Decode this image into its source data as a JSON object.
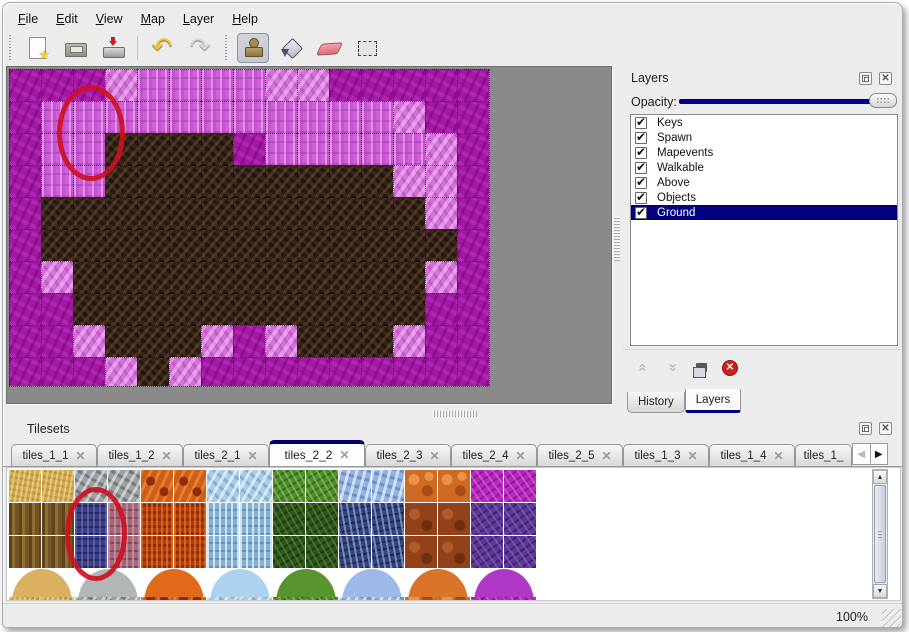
{
  "menu": {
    "items": [
      {
        "label": "File"
      },
      {
        "label": "Edit"
      },
      {
        "label": "View"
      },
      {
        "label": "Map"
      },
      {
        "label": "Layer"
      },
      {
        "label": "Help"
      }
    ]
  },
  "toolbar": {
    "buttons": [
      {
        "name": "new-map-button",
        "icon": "new-file-icon",
        "pressed": false,
        "group": 1
      },
      {
        "name": "open-button",
        "icon": "open-icon",
        "pressed": false,
        "group": 1
      },
      {
        "name": "save-button",
        "icon": "save-icon",
        "pressed": false,
        "group": 1
      },
      {
        "name": "undo-button",
        "icon": "undo-icon",
        "glyph": "↶",
        "pressed": false,
        "group": 2
      },
      {
        "name": "redo-button",
        "icon": "redo-icon",
        "glyph": "↷",
        "pressed": false,
        "group": 2
      },
      {
        "name": "stamp-tool-button",
        "icon": "stamp-icon",
        "pressed": true,
        "group": 3
      },
      {
        "name": "fill-tool-button",
        "icon": "fill-icon",
        "pressed": false,
        "group": 3
      },
      {
        "name": "eraser-tool-button",
        "icon": "eraser-icon",
        "pressed": false,
        "group": 3
      },
      {
        "name": "select-tool-button",
        "icon": "select-icon",
        "pressed": false,
        "group": 3
      }
    ]
  },
  "map": {
    "tile_size": 32,
    "legend": {
      "M": "#a517a5",
      "P": "#cf5ed8",
      "L": "#d66fd9",
      "D": "#34241b"
    },
    "rows": [
      "MMMLPPPPLLMMMMM",
      "MPPPPPPPPPPPLMM",
      "MPPDDDDMPPPPPLM",
      "MPPDDDDDDDDDLLM",
      "MDDDDDDDDDDDDLM",
      "MDDDDDDDDDDDDDM",
      "MLDDDDDDDDDDDLM",
      "MMDDDDDDDDDDDMM",
      "MMLDDDLMLDDDLMM",
      "MMMLDLMMMMMMMMM"
    ],
    "annotation_color": "#cf1021"
  },
  "layers_panel": {
    "title": "Layers",
    "opacity_label": "Opacity:",
    "layers": [
      {
        "name": "Keys",
        "checked": true,
        "selected": false
      },
      {
        "name": "Spawn",
        "checked": true,
        "selected": false
      },
      {
        "name": "Mapevents",
        "checked": true,
        "selected": false
      },
      {
        "name": "Walkable",
        "checked": true,
        "selected": false
      },
      {
        "name": "Above",
        "checked": true,
        "selected": false
      },
      {
        "name": "Objects",
        "checked": true,
        "selected": false
      },
      {
        "name": "Ground",
        "checked": true,
        "selected": true
      }
    ],
    "buttons": [
      {
        "name": "raise-layer-button",
        "icon": "chevron-up-icon"
      },
      {
        "name": "lower-layer-button",
        "icon": "chevron-down-icon"
      },
      {
        "name": "duplicate-layer-button",
        "icon": "duplicate-icon"
      },
      {
        "name": "delete-layer-button",
        "icon": "delete-icon",
        "glyph": "✕"
      }
    ],
    "dock_tabs": [
      {
        "label": "History",
        "active": false
      },
      {
        "label": "Layers",
        "active": true
      }
    ],
    "selection_color": "#000080",
    "slider_color": "#00008c"
  },
  "tilesets_panel": {
    "title": "Tilesets",
    "tabs": [
      {
        "label": "tiles_1_1",
        "active": false,
        "closable": true
      },
      {
        "label": "tiles_1_2",
        "active": false,
        "closable": true
      },
      {
        "label": "tiles_2_1",
        "active": false,
        "closable": true
      },
      {
        "label": "tiles_2_2",
        "active": true,
        "closable": true
      },
      {
        "label": "tiles_2_3",
        "active": false,
        "closable": true
      },
      {
        "label": "tiles_2_4",
        "active": false,
        "closable": true
      },
      {
        "label": "tiles_2_5",
        "active": false,
        "closable": true
      },
      {
        "label": "tiles_1_3",
        "active": false,
        "closable": true
      },
      {
        "label": "tiles_1_4",
        "active": false,
        "closable": true
      },
      {
        "label": "tiles_1_",
        "active": false,
        "closable": false,
        "truncated": true
      }
    ],
    "tab_scroll": {
      "left_glyph": "◀",
      "right_glyph": "▶"
    },
    "tile_pitch": 33,
    "tile_rows": [
      [
        "sand",
        "sand",
        "grayrock",
        "grayrock",
        "lava",
        "lava",
        "ice",
        "ice",
        "vine",
        "vine",
        "crystal",
        "crystal",
        "pebble",
        "pebble",
        "web",
        "web"
      ],
      [
        "bark",
        "bark",
        "navy",
        "mauve",
        "fire",
        "fire",
        "icicle",
        "icicle",
        "vinedark",
        "vinedark",
        "crystaldark",
        "crystaldark",
        "pebbledark",
        "pebbledark",
        "scale",
        "scale"
      ],
      [
        "bark",
        "bark",
        "navy",
        "mauve",
        "fire",
        "fire",
        "icicle",
        "icicle",
        "vinedark",
        "vinedark",
        "crystaldark",
        "crystaldark",
        "pebbledark",
        "pebbledark",
        "scale",
        "scale"
      ]
    ],
    "blob_colors": [
      "#d9b160",
      "#b2b6b6",
      "#e06a1a",
      "#abd2ee",
      "#589430",
      "#9db9e8",
      "#d97428",
      "#b038c6"
    ],
    "sliver_row": [
      "sand",
      "sand",
      "grayrock",
      "grayrock",
      "lava",
      "lava",
      "ice",
      "ice",
      "vine",
      "vine",
      "crystal",
      "crystal",
      "pebble",
      "pebble",
      "web",
      "web"
    ],
    "annotation_color": "#cf1021",
    "scrollbar": {
      "up_glyph": "▲",
      "down_glyph": "▼"
    }
  },
  "status_bar": {
    "zoom": "100%"
  }
}
